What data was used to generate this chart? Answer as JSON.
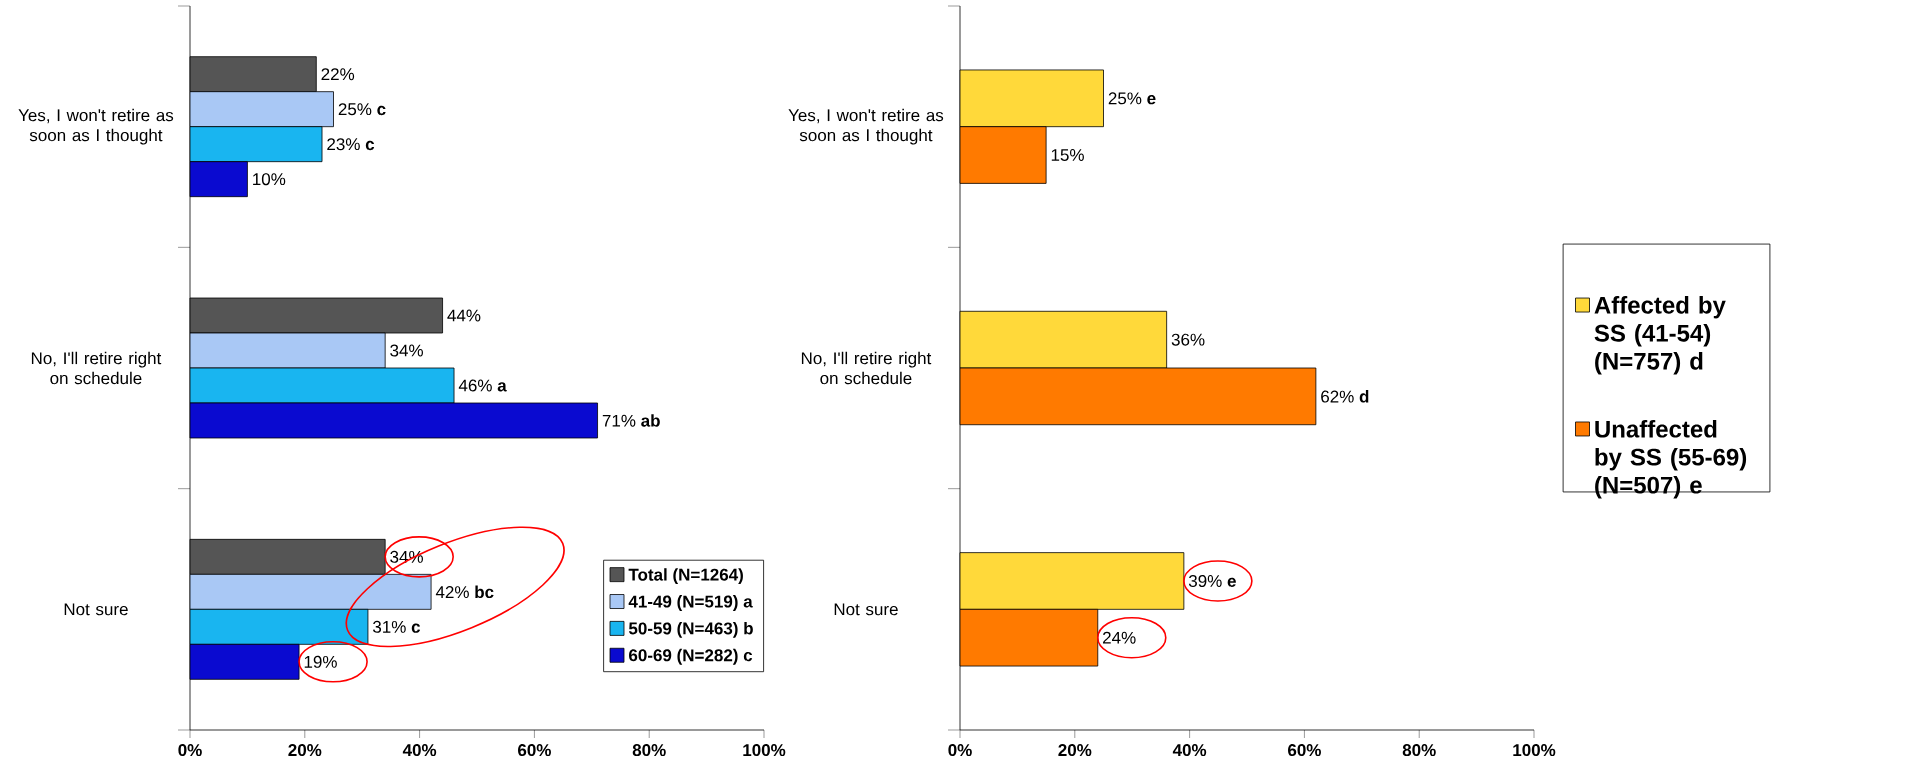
{
  "chart_data": [
    {
      "type": "bar",
      "orientation": "horizontal",
      "categories": [
        "Yes, I won't retire as soon as I thought",
        "No, I'll retire right on schedule",
        "Not sure"
      ],
      "series": [
        {
          "name": "Total (N=1264)",
          "color": "#555555",
          "values": [
            22,
            44,
            34
          ],
          "value_labels": [
            "22%",
            "44%",
            "34%"
          ]
        },
        {
          "name": "41-49 (N=519) a",
          "color": "#a9c8f5",
          "values": [
            25,
            34,
            42
          ],
          "value_labels": [
            "25% **c**",
            "34%",
            "42% **bc**"
          ]
        },
        {
          "name": "50-59 (N=463) b",
          "color": "#19b5f0",
          "values": [
            23,
            46,
            31
          ],
          "value_labels": [
            "23% **c**",
            "46% **a**",
            "31% **c**"
          ]
        },
        {
          "name": "60-69 (N=282) c",
          "color": "#0a0ad0",
          "values": [
            10,
            71,
            19
          ],
          "value_labels": [
            "10%",
            "71% **ab**",
            "19%"
          ]
        }
      ],
      "xlim": [
        0,
        100
      ],
      "xticks": [
        {
          "value": 0,
          "label": "0%"
        },
        {
          "value": 20,
          "label": "20%"
        },
        {
          "value": 40,
          "label": "40%"
        },
        {
          "value": 60,
          "label": "60%"
        },
        {
          "value": 80,
          "label": "80%"
        },
        {
          "value": 100,
          "label": "100%"
        }
      ],
      "legend": "bottom right"
    },
    {
      "type": "bar",
      "orientation": "horizontal",
      "categories": [
        "Yes, I won't retire as soon as I thought",
        "No, I'll retire right on schedule",
        "Not sure"
      ],
      "series": [
        {
          "name": "Affected by SS (41-54) (N=757) d",
          "color": "#ffd93a",
          "values": [
            25,
            36,
            39
          ],
          "value_labels": [
            "25% **e**",
            "36%",
            "39% **e**"
          ]
        },
        {
          "name": "Unaffected by SS (55-69) (N=507) e",
          "color": "#ff7a00",
          "values": [
            15,
            62,
            24
          ],
          "value_labels": [
            "15%",
            "62% **d**",
            "24%"
          ]
        }
      ],
      "xlim": [
        0,
        100
      ],
      "xticks": [
        {
          "value": 0,
          "label": "0%"
        },
        {
          "value": 20,
          "label": "20%"
        },
        {
          "value": 40,
          "label": "40%"
        },
        {
          "value": 60,
          "label": "60%"
        },
        {
          "value": 80,
          "label": "80%"
        },
        {
          "value": 100,
          "label": "100%"
        }
      ],
      "legend": "right"
    }
  ]
}
